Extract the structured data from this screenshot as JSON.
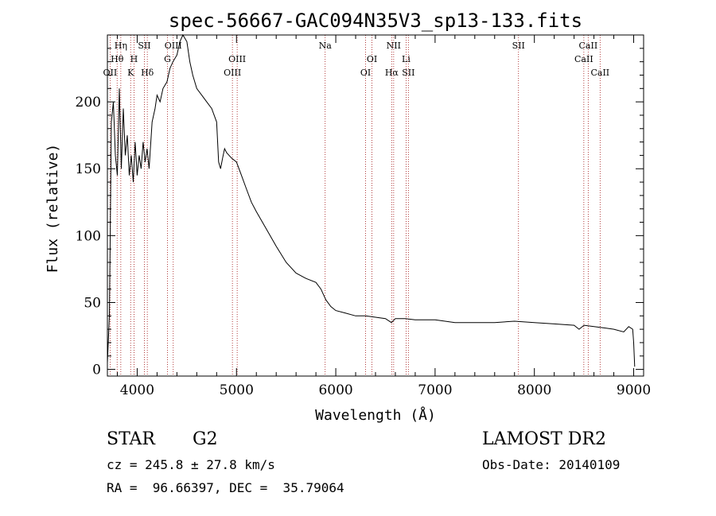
{
  "chart_data": {
    "type": "line",
    "title": "spec-56667-GAC094N35V3_sp13-133.fits",
    "xlabel": "Wavelength (Å)",
    "ylabel": "Flux (relative)",
    "xlim": [
      3700,
      9100
    ],
    "ylim": [
      -5,
      250
    ],
    "xticks": [
      4000,
      5000,
      6000,
      7000,
      8000,
      9000
    ],
    "yticks": [
      0,
      50,
      100,
      150,
      200
    ],
    "series": [
      {
        "x": [
          3700,
          3720,
          3740,
          3760,
          3780,
          3800,
          3820,
          3840,
          3860,
          3880,
          3900,
          3920,
          3940,
          3960,
          3980,
          4000,
          4020,
          4040,
          4060,
          4080,
          4100,
          4120,
          4150,
          4180,
          4200,
          4230,
          4260,
          4300,
          4330,
          4360,
          4400,
          4430,
          4460,
          4500,
          4530,
          4560,
          4600,
          4650,
          4700,
          4750,
          4800,
          4820,
          4840,
          4860,
          4880,
          4900,
          4950,
          5000,
          5050,
          5100,
          5150,
          5200,
          5300,
          5400,
          5500,
          5600,
          5700,
          5800,
          5850,
          5900,
          5950,
          6000,
          6100,
          6200,
          6300,
          6400,
          6500,
          6560,
          6600,
          6700,
          6800,
          7000,
          7200,
          7400,
          7600,
          7800,
          8000,
          8200,
          8400,
          8450,
          8500,
          8600,
          8700,
          8800,
          8900,
          8950,
          8990,
          9000,
          9010
        ],
        "y": [
          5,
          40,
          185,
          200,
          160,
          145,
          210,
          150,
          195,
          160,
          175,
          145,
          160,
          140,
          170,
          145,
          160,
          150,
          170,
          155,
          165,
          150,
          185,
          195,
          205,
          200,
          210,
          215,
          225,
          230,
          235,
          245,
          250,
          245,
          230,
          220,
          210,
          205,
          200,
          195,
          185,
          155,
          150,
          158,
          165,
          162,
          158,
          155,
          145,
          135,
          125,
          118,
          105,
          92,
          80,
          72,
          68,
          65,
          60,
          52,
          47,
          44,
          42,
          40,
          40,
          39,
          38,
          35,
          38,
          38,
          37,
          37,
          35,
          35,
          35,
          36,
          35,
          34,
          33,
          30,
          33,
          32,
          31,
          30,
          28,
          32,
          30,
          20,
          2
        ]
      }
    ],
    "line_markers": [
      {
        "label": "Hη",
        "x": 3835,
        "row": 1
      },
      {
        "label": "Hθ",
        "x": 3798,
        "row": 2
      },
      {
        "label": "OII",
        "x": 3727,
        "row": 3
      },
      {
        "label": "H",
        "x": 3968,
        "row": 2
      },
      {
        "label": "K",
        "x": 3934,
        "row": 3
      },
      {
        "label": "SII",
        "x": 4072,
        "row": 1
      },
      {
        "label": "Hδ",
        "x": 4102,
        "row": 3
      },
      {
        "label": "OIII",
        "x": 4363,
        "row": 1
      },
      {
        "label": "G",
        "x": 4305,
        "row": 2
      },
      {
        "label": "OIII",
        "x": 5007,
        "row": 2
      },
      {
        "label": "OIII",
        "x": 4959,
        "row": 3
      },
      {
        "label": "Na",
        "x": 5893,
        "row": 1
      },
      {
        "label": "OI",
        "x": 6364,
        "row": 2
      },
      {
        "label": "OI",
        "x": 6300,
        "row": 3
      },
      {
        "label": "NII",
        "x": 6583,
        "row": 1
      },
      {
        "label": "Li",
        "x": 6708,
        "row": 2
      },
      {
        "label": "Hα",
        "x": 6563,
        "row": 3
      },
      {
        "label": "SII",
        "x": 6731,
        "row": 3
      },
      {
        "label": "SII",
        "x": 7840,
        "row": 1
      },
      {
        "label": "CaII",
        "x": 8542,
        "row": 1
      },
      {
        "label": "CaII",
        "x": 8498,
        "row": 2
      },
      {
        "label": "CaII",
        "x": 8662,
        "row": 3
      }
    ],
    "grid": false
  },
  "info": {
    "object_class": "STAR",
    "subclass": "G2",
    "survey": "LAMOST DR2",
    "redshift": "cz = 245.8 ± 27.8 km/s",
    "obs_date": "Obs-Date: 20140109",
    "coords": "RA =  96.66397, DEC =  35.79064"
  },
  "colors": {
    "marker_line": "#a01010",
    "axes": "#000000"
  }
}
